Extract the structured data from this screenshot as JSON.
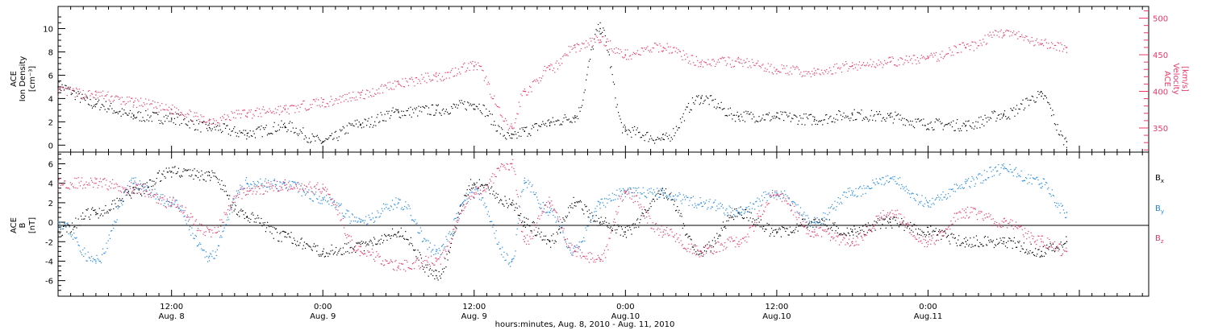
{
  "chart_data": [
    {
      "type": "scatter",
      "panel": "top",
      "ylabel_left": [
        "ACE",
        "Ion Density",
        "[cm⁻³]"
      ],
      "ylabel_right": [
        "ACE",
        "Velocity",
        "[km/s]"
      ],
      "y_left_range": [
        -0.6,
        11.9
      ],
      "y_left_ticks": [
        0,
        2,
        4,
        6,
        8,
        10
      ],
      "y_right_range": [
        317,
        516
      ],
      "y_right_ticks": [
        350,
        400,
        450,
        500
      ],
      "colors": {
        "density": "#000000",
        "velocity": "#e8386a"
      },
      "series": [
        {
          "axis": "left",
          "hours": [
            0,
            3,
            6,
            9,
            12,
            15,
            18,
            21,
            24,
            27,
            30,
            33,
            36,
            37,
            39,
            41,
            43,
            45,
            48,
            51,
            54,
            57,
            60,
            63,
            66,
            69,
            72,
            75,
            78,
            80
          ],
          "values": [
            5,
            3.5,
            2.5,
            2.3,
            1.5,
            1,
            1.6,
            0.3,
            1.8,
            2.8,
            3,
            3.5,
            0.6,
            1.2,
            1.9,
            2.4,
            10,
            1.2,
            0.5,
            4,
            2.5,
            2.4,
            2.2,
            2.6,
            2.4,
            1.8,
            1.7,
            2.6,
            4.2,
            0.3
          ]
        },
        {
          "axis": "right",
          "hours": [
            0,
            3,
            6,
            9,
            12,
            15,
            18,
            21,
            24,
            27,
            30,
            33,
            36,
            37,
            39,
            41,
            43,
            45,
            48,
            51,
            54,
            57,
            60,
            63,
            66,
            69,
            72,
            75,
            78,
            80
          ],
          "values": [
            400,
            395,
            385,
            375,
            360,
            370,
            375,
            385,
            395,
            410,
            420,
            435,
            350,
            400,
            430,
            460,
            470,
            450,
            460,
            440,
            440,
            430,
            425,
            435,
            440,
            445,
            460,
            480,
            465,
            460
          ]
        }
      ]
    },
    {
      "type": "scatter",
      "panel": "bottom",
      "ylabel": [
        "ACE",
        "B",
        "[nT]"
      ],
      "y_range": [
        -7.6,
        7.2
      ],
      "y_ticks": [
        -6,
        -4,
        -2,
        0,
        2,
        4,
        6
      ],
      "legend": [
        {
          "label": "B",
          "sub": "x",
          "color": "#000000"
        },
        {
          "label": "B",
          "sub": "y",
          "color": "#1e88e5"
        },
        {
          "label": "B",
          "sub": "z",
          "color": "#e8386a"
        }
      ],
      "series": [
        {
          "component": "Bx",
          "hours": [
            0,
            3,
            6,
            9,
            12,
            15,
            18,
            21,
            24,
            27,
            30,
            33,
            36,
            37,
            39,
            41,
            43,
            45,
            48,
            51,
            54,
            57,
            60,
            63,
            66,
            69,
            72,
            75,
            78,
            80
          ],
          "values": [
            -1,
            1,
            3,
            5.2,
            4.8,
            0.5,
            -1.5,
            -3,
            -2.5,
            -1,
            -5.5,
            4,
            2,
            0,
            -2,
            2,
            0,
            -1,
            3,
            -3,
            1,
            -1,
            0,
            -1,
            0,
            -1,
            -2,
            -2,
            -3,
            -2
          ]
        },
        {
          "component": "By",
          "hours": [
            0,
            3,
            6,
            9,
            12,
            15,
            18,
            21,
            24,
            27,
            30,
            33,
            36,
            37,
            39,
            41,
            43,
            45,
            48,
            51,
            54,
            57,
            60,
            63,
            66,
            69,
            72,
            75,
            78,
            80
          ],
          "values": [
            0,
            -4,
            4,
            2,
            -3.5,
            4,
            3.8,
            2.5,
            0,
            2,
            -3,
            3,
            -4,
            4,
            1,
            -3,
            2,
            3,
            3,
            2,
            1,
            3,
            0,
            3,
            4.5,
            2,
            4,
            5.5,
            4,
            1
          ]
        },
        {
          "component": "Bz",
          "hours": [
            0,
            3,
            6,
            9,
            12,
            15,
            18,
            21,
            24,
            27,
            30,
            33,
            36,
            37,
            39,
            41,
            43,
            45,
            48,
            51,
            54,
            57,
            60,
            63,
            66,
            69,
            72,
            75,
            78,
            80
          ],
          "values": [
            4,
            4,
            3.5,
            2,
            -1,
            3.2,
            3.8,
            3.5,
            -3,
            -4.5,
            -4,
            3,
            6,
            -2,
            2,
            -3,
            -4,
            3,
            -1,
            -3,
            -2,
            2.8,
            -1,
            -2,
            1,
            -2,
            1,
            0,
            -2,
            -3
          ]
        }
      ]
    }
  ],
  "x_axis": {
    "title": "hours:minutes, Aug.  8, 2010 - Aug. 11, 2010",
    "range_hours": [
      0,
      86.5
    ],
    "ticks": [
      {
        "hour": 9,
        "line1": "12:00",
        "line2": "Aug. 8"
      },
      {
        "hour": 21,
        "line1": "0:00",
        "line2": "Aug. 9"
      },
      {
        "hour": 33,
        "line1": "12:00",
        "line2": "Aug. 9"
      },
      {
        "hour": 45,
        "line1": "0:00",
        "line2": "Aug.10"
      },
      {
        "hour": 57,
        "line1": "12:00",
        "line2": "Aug.10"
      },
      {
        "hour": 69,
        "line1": "0:00",
        "line2": "Aug.11"
      }
    ],
    "minor_step_hours": 1
  }
}
